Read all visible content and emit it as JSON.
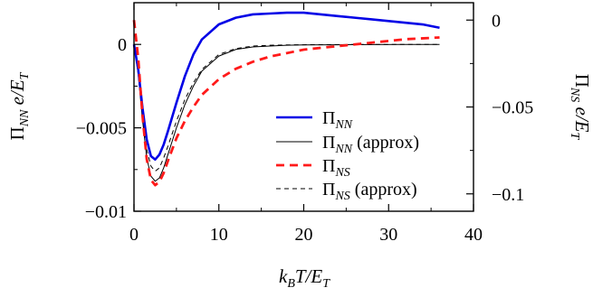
{
  "chart_data": {
    "type": "line",
    "x_axis": {
      "label": "k_B T/E_T",
      "range": [
        0,
        40
      ],
      "ticks": [
        0,
        10,
        20,
        30,
        40
      ],
      "tick_labels": [
        "0",
        "10",
        "20",
        "30",
        "40"
      ]
    },
    "y_axis_left": {
      "label": "Π_NN e/E_T",
      "range": [
        -0.01,
        0.0025
      ],
      "ticks": [
        0,
        -0.005,
        -0.01
      ],
      "tick_labels": [
        "0",
        "−0.005",
        "−0.01"
      ]
    },
    "y_axis_right": {
      "label": "Π_NS e/E_T",
      "range": [
        -0.11,
        0.01
      ],
      "ticks": [
        0,
        -0.05,
        -0.1
      ],
      "tick_labels": [
        "0",
        "−0.05",
        "−0.1"
      ]
    },
    "legend_position": "bottom-right",
    "series": [
      {
        "name": "Π_NN",
        "axis": "left",
        "color": "#0000e6",
        "style": "solid-thick",
        "x": [
          0,
          0.5,
          1,
          1.5,
          2,
          2.5,
          3,
          3.5,
          4,
          5,
          6,
          7,
          8,
          10,
          12,
          14,
          16,
          18,
          20,
          22,
          24,
          26,
          28,
          30,
          32,
          34,
          36
        ],
        "y": [
          0,
          -0.0015,
          -0.0038,
          -0.0057,
          -0.0067,
          -0.0069,
          -0.0066,
          -0.006,
          -0.0052,
          -0.0035,
          -0.0019,
          -0.0006,
          0.0003,
          0.0012,
          0.0016,
          0.0018,
          0.00185,
          0.0019,
          0.0019,
          0.0018,
          0.0017,
          0.0016,
          0.0015,
          0.0014,
          0.0013,
          0.0012,
          0.001
        ]
      },
      {
        "name": "Π_NN (approx)",
        "axis": "left",
        "color": "#000000",
        "style": "solid-thin",
        "x": [
          0,
          0.5,
          1,
          1.5,
          2,
          2.5,
          3,
          3.5,
          4,
          5,
          6,
          7,
          8,
          10,
          12,
          14,
          16,
          18,
          20,
          24,
          28,
          32,
          36
        ],
        "y": [
          0,
          -0.0018,
          -0.0045,
          -0.0068,
          -0.0079,
          -0.0082,
          -0.008,
          -0.0074,
          -0.0066,
          -0.005,
          -0.0036,
          -0.0025,
          -0.0016,
          -0.0007,
          -0.0003,
          -0.00015,
          -0.0001,
          -5e-05,
          -3e-05,
          -2e-05,
          -1e-05,
          0,
          0
        ]
      },
      {
        "name": "Π_NS",
        "axis": "right",
        "color": "#ff1a1a",
        "style": "dashed-thick",
        "x": [
          0,
          0.5,
          1,
          1.5,
          2,
          2.5,
          3,
          3.5,
          4,
          5,
          6,
          7,
          8,
          10,
          12,
          14,
          16,
          18,
          20,
          24,
          28,
          32,
          36
        ],
        "y": [
          0,
          -0.022,
          -0.055,
          -0.08,
          -0.092,
          -0.095,
          -0.093,
          -0.088,
          -0.081,
          -0.068,
          -0.058,
          -0.05,
          -0.043,
          -0.034,
          -0.028,
          -0.024,
          -0.021,
          -0.019,
          -0.017,
          -0.015,
          -0.013,
          -0.011,
          -0.01
        ]
      },
      {
        "name": "Π_NS (approx)",
        "axis": "left",
        "color": "#000000",
        "style": "dashed-thin",
        "x": [
          0,
          0.5,
          1,
          1.5,
          2,
          2.5,
          3,
          3.5,
          4,
          5,
          6,
          7,
          8,
          10,
          12,
          14,
          16,
          18,
          20,
          24,
          28,
          32,
          36
        ],
        "y": [
          0,
          -0.0017,
          -0.0042,
          -0.0063,
          -0.0073,
          -0.0076,
          -0.0074,
          -0.0068,
          -0.0061,
          -0.0046,
          -0.0033,
          -0.0023,
          -0.0015,
          -0.0006,
          -0.00025,
          -0.0001,
          -5e-05,
          -3e-05,
          -2e-05,
          -1e-05,
          0,
          0,
          0
        ]
      }
    ]
  }
}
